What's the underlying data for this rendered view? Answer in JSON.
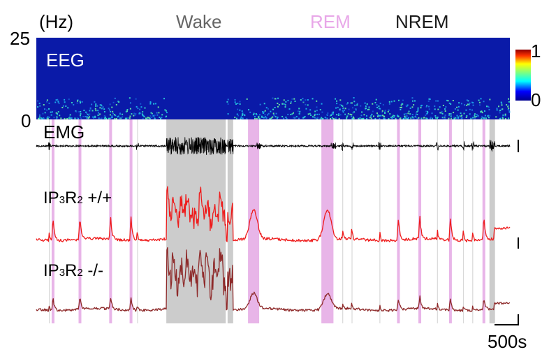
{
  "chart_data": {
    "type": "heatmap",
    "y_unit": "(Hz)",
    "y_max_label": "25",
    "y_min_label": "0",
    "states": [
      {
        "label": "Wake",
        "color": "#666666"
      },
      {
        "label": "REM",
        "color": "#e8a7e8"
      },
      {
        "label": "NREM",
        "color": "#1a1a1a"
      }
    ],
    "spectrogram": {
      "label": "EEG",
      "freq_range": [
        0,
        25
      ]
    },
    "colorbar": {
      "min_label": "0",
      "max_label": "1"
    },
    "emg": {
      "label": "EMG"
    },
    "traces": [
      {
        "label_main": "IP",
        "label_sub1": "3",
        "label_mid": "R",
        "label_sub2": "2",
        "label_tail": " +/+",
        "color": "#ee1c1c"
      },
      {
        "label_main": "IP",
        "label_sub1": "3",
        "label_mid": "R",
        "label_sub2": "2",
        "label_tail": " -/-",
        "color": "#8e2a2a"
      }
    ],
    "scale_bar": {
      "label": "500s",
      "seconds": 500
    },
    "time_range_s": [
      0,
      5100
    ],
    "wake_epochs_s": [
      [
        1400,
        2040
      ],
      [
        2060,
        2120
      ],
      [
        4880,
        4940
      ]
    ],
    "rem_epochs_s": [
      [
        2280,
        2400
      ],
      [
        3070,
        3200
      ]
    ],
    "brief_rem_marks_s": [
      180,
      470,
      800,
      1020,
      3900,
      4130,
      4460,
      4820
    ],
    "brief_wake_marks_s": [
      140,
      1090,
      3300,
      3400,
      3700,
      4320,
      4600,
      4700
    ]
  },
  "colors": {
    "spectrogram_bg": "#0a1aa8",
    "spectrogram_band": "#1f8fdc",
    "wake_shade": "#cccccc",
    "rem_shade": "#e8b5e8"
  }
}
